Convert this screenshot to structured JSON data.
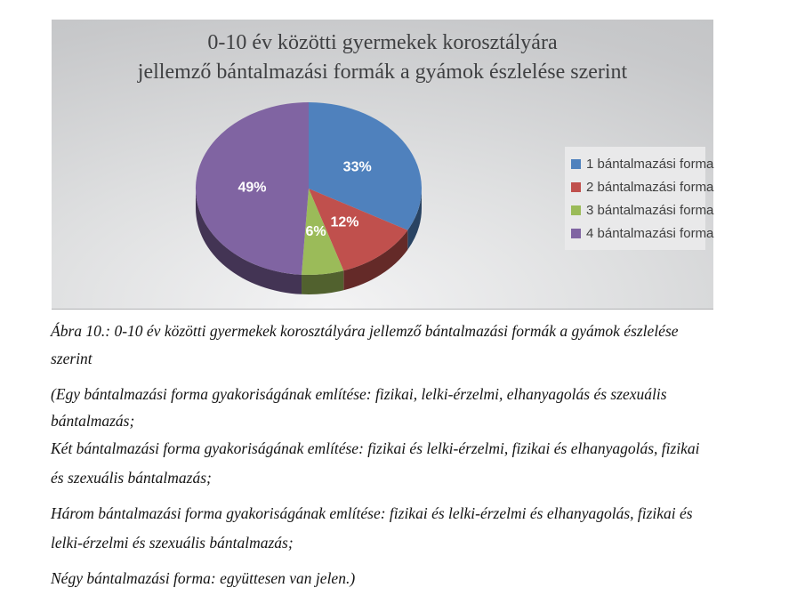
{
  "chart": {
    "title_line1": "0-10 év közötti gyermekek korosztályára",
    "title_line2": "jellemző bántalmazási formák a gyámok észlelése szerint"
  },
  "chart_data": {
    "type": "pie",
    "style": "3d-pie",
    "title": "0-10 év közötti gyermekek korosztályára jellemző bántalmazási formák a gyámok észlelése szerint",
    "categories": [
      "1 bántalmazási forma",
      "2 bántalmazási forma",
      "3 bántalmazási forma",
      "4 bántalmazási forma"
    ],
    "values": [
      33,
      12,
      6,
      49
    ],
    "unit": "%",
    "data_labels": [
      "33%",
      "12%",
      "6%",
      "49%"
    ],
    "colors": [
      "#4F81BD",
      "#C0504D",
      "#9BBB59",
      "#8064A2"
    ],
    "start_angle_deg": 0,
    "direction": "clockwise",
    "legend_position": "right",
    "plot_background": "gray-gradient"
  },
  "caption": {
    "lines": [
      "Ábra 10.: 0-10 év közötti gyermekek korosztályára jellemző bántalmazási formák a gyámok észlelése",
      "szerint"
    ]
  },
  "notes": {
    "p1": {
      "lines": [
        "(Egy bántalmazási forma gyakoriságának említése: fizikai, lelki-érzelmi, elhanyagolás és szexuális",
        "bántalmazás;"
      ]
    },
    "p2": {
      "lines": [
        "Két bántalmazási forma gyakoriságának említése: fizikai és lelki-érzelmi, fizikai és elhanyagolás, fizikai",
        "és szexuális bántalmazás;"
      ]
    },
    "p3": {
      "lines": [
        "Három bántalmazási forma gyakoriságának említése: fizikai és lelki-érzelmi és elhanyagolás, fizikai és",
        "lelki-érzelmi és szexuális bántalmazás;"
      ]
    },
    "p4": {
      "lines": [
        "Négy bántalmazási forma: együttesen van jelen.)"
      ]
    }
  }
}
